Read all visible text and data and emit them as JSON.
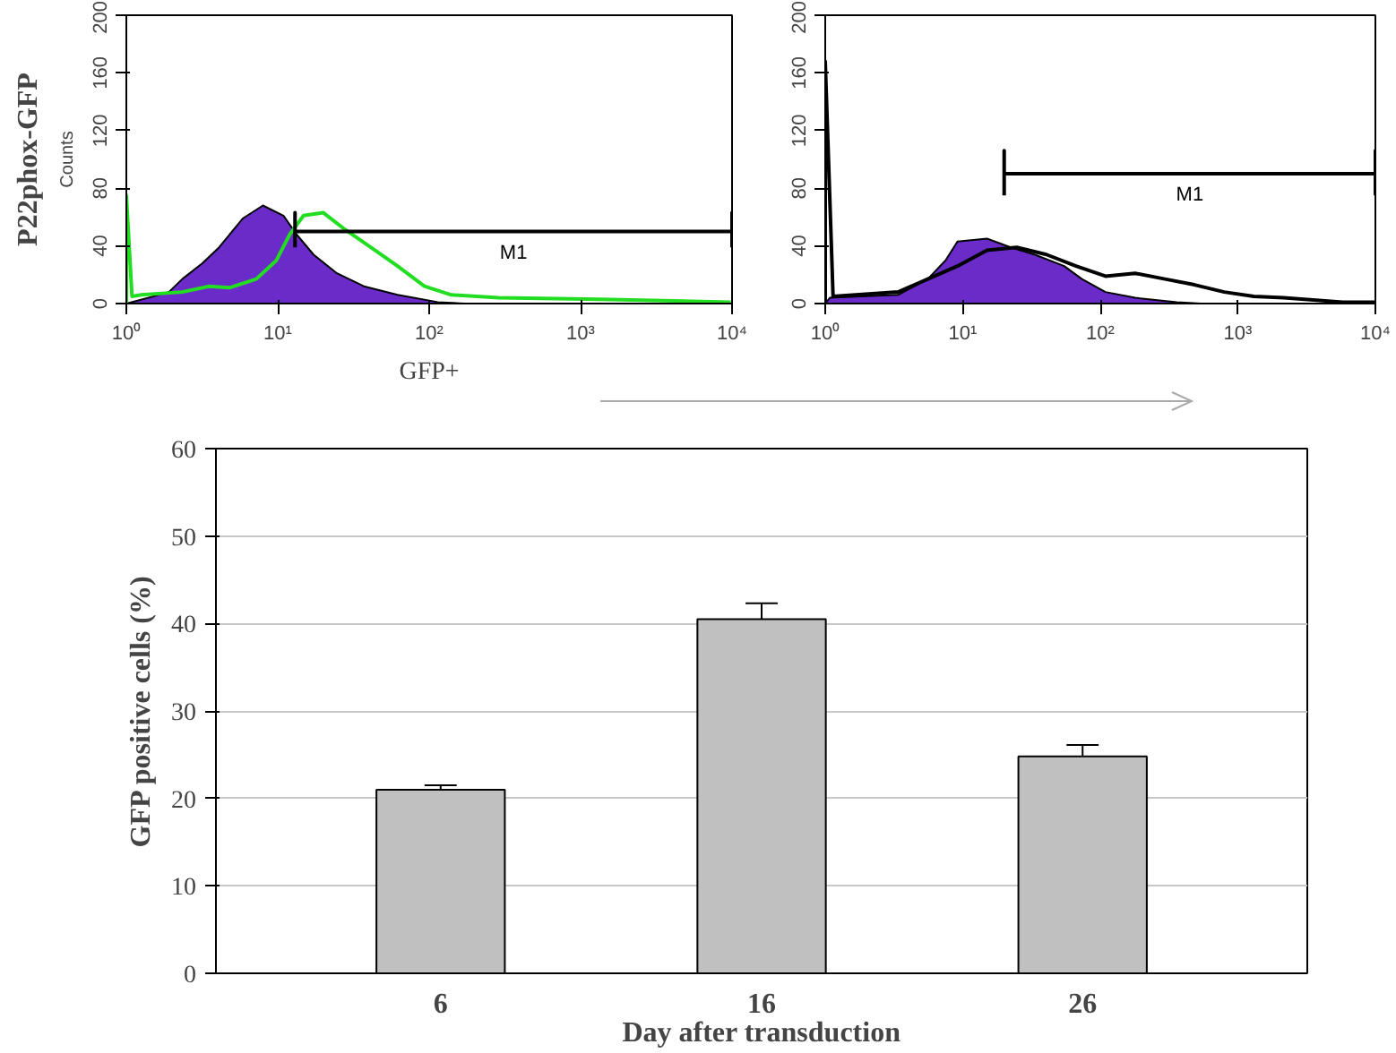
{
  "chart_data": [
    {
      "type": "line",
      "ylabel": "Counts",
      "xlabel": "GFP+",
      "log": "x",
      "grid": false,
      "xlim": [
        1,
        10000
      ],
      "ylim": [
        0,
        200
      ],
      "xticks": [
        {
          "value": 1,
          "label": "10⁰"
        },
        {
          "value": 10,
          "label": "10¹"
        },
        {
          "value": 100,
          "label": "10²"
        },
        {
          "value": 1000,
          "label": "10³"
        },
        {
          "value": 10000,
          "label": "10⁴"
        }
      ],
      "yticks": [
        0,
        40,
        80,
        120,
        160,
        200
      ],
      "annotations": [
        "P22phox-GFP",
        "M1"
      ],
      "series": [
        {
          "type": "area",
          "color": "#6a2bc8",
          "x": [
            1.0,
            1.4,
            1.91,
            2.34,
            3.18,
            4.1,
            5.87,
            7.98,
            10.9,
            13.3,
            17.2,
            24.6,
            37.0,
            61.8,
            114,
            172
          ],
          "values": [
            0,
            4,
            8,
            17,
            28,
            39,
            59,
            68,
            61,
            48,
            34,
            21,
            12,
            6,
            1,
            0
          ]
        },
        {
          "type": "line",
          "color": "#22dd22",
          "x": [
            1.0,
            1.0,
            1.09,
            1.26,
            2.34,
            3.52,
            4.79,
            7.21,
            9.8,
            12.0,
            14.8,
            20.0,
            27.3,
            41.1,
            61.8,
            93,
            140,
            287,
            1330,
            9800
          ],
          "values": [
            0,
            75,
            5,
            6,
            8,
            12,
            11,
            17,
            30,
            48,
            61,
            63,
            52,
            39,
            26,
            12,
            6,
            4,
            3,
            1
          ]
        },
        {
          "type": "line",
          "color": "#000000",
          "x": [
            13,
            13,
            13,
            10000,
            10000,
            10000
          ],
          "values": [
            39,
            63,
            50,
            50,
            63,
            39
          ]
        }
      ]
    },
    {
      "type": "line",
      "log": "x",
      "grid": false,
      "xlim": [
        1,
        10000
      ],
      "ylim": [
        0,
        200
      ],
      "xticks": [
        {
          "value": 1,
          "label": "10⁰"
        },
        {
          "value": 10,
          "label": "10¹"
        },
        {
          "value": 100,
          "label": "10²"
        },
        {
          "value": 1000,
          "label": "10³"
        },
        {
          "value": 10000,
          "label": "10⁴"
        }
      ],
      "yticks": [
        0,
        40,
        80,
        120,
        160,
        200
      ],
      "annotations": [
        "M1"
      ],
      "series": [
        {
          "type": "area",
          "color": "#6a2bc8",
          "x": [
            1.0,
            1.08,
            3.39,
            5.57,
            7.5,
            9.15,
            15.0,
            22.3,
            33.2,
            54.6,
            73.5,
            109,
            179,
            360,
            535
          ],
          "values": [
            0,
            4,
            6,
            17,
            30,
            43,
            45,
            39,
            34,
            26,
            17,
            8,
            4,
            1,
            0
          ]
        },
        {
          "type": "line",
          "color": "#000000",
          "x": [
            1.0,
            1.0,
            1.14,
            3.39,
            5.57,
            9.15,
            15.0,
            24.7,
            40.5,
            66.6,
            109,
            179,
            295,
            484,
            796,
            1306,
            2148,
            5790,
            10000
          ],
          "values": [
            0,
            168,
            5,
            8,
            17,
            26,
            37,
            39,
            34,
            26,
            19,
            21,
            17,
            13,
            8,
            5,
            4,
            1,
            1
          ]
        },
        {
          "type": "line",
          "color": "#000000",
          "x": [
            20,
            20,
            20,
            10000,
            10000,
            10000
          ],
          "values": [
            75,
            106,
            90,
            90,
            106,
            75
          ]
        }
      ]
    },
    {
      "type": "bar",
      "xlabel": "Day after transduction",
      "ylabel": "GFP positive cells (%)",
      "categories": [
        "6",
        "16",
        "26"
      ],
      "values": [
        21,
        40.5,
        24.8
      ],
      "color": "#c0c0c0",
      "errors": [
        [
          21,
          21.5
        ],
        [
          40.5,
          42.3
        ],
        [
          24.8,
          26.1
        ]
      ],
      "ylim": [
        0,
        60
      ],
      "yticks": [
        0,
        10,
        20,
        30,
        40,
        50,
        60
      ],
      "grid": "y"
    }
  ]
}
